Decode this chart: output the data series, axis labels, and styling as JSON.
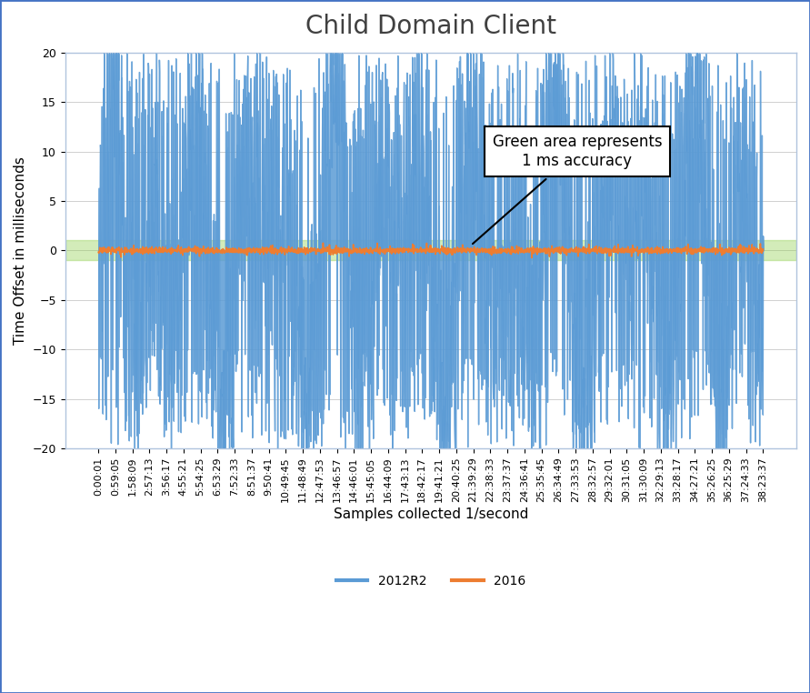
{
  "title": "Child Domain Client",
  "xlabel": "Samples collected 1/second",
  "ylabel": "Time Offset in milliseconds",
  "ylim": [
    -20,
    20
  ],
  "yticks": [
    -20,
    -15,
    -10,
    -5,
    0,
    5,
    10,
    15,
    20
  ],
  "green_band_lower": -1,
  "green_band_upper": 1,
  "green_color": "#92d050",
  "green_alpha": 0.4,
  "blue_color": "#5b9bd5",
  "orange_color": "#ed7d31",
  "background_color": "#ffffff",
  "border_color": "#4472c4",
  "annotation_text": "Green area represents\n1 ms accuracy",
  "legend_2012r2": "2012R2",
  "legend_2016": "2016",
  "xtick_labels": [
    "0:00:01",
    "0:59:05",
    "1:58:09",
    "2:57:13",
    "3:56:17",
    "4:55:21",
    "5:54:25",
    "6:53:29",
    "7:52:33",
    "8:51:37",
    "9:50:41",
    "10:49:45",
    "11:48:49",
    "12:47:53",
    "13:46:57",
    "14:46:01",
    "15:45:05",
    "16:44:09",
    "17:43:13",
    "18:42:17",
    "19:41:21",
    "20:40:25",
    "21:39:29",
    "22:38:33",
    "23:37:37",
    "24:36:41",
    "25:35:45",
    "26:34:49",
    "27:33:53",
    "28:32:57",
    "29:32:01",
    "30:31:05",
    "31:30:09",
    "32:29:13",
    "33:28:17",
    "34:27:21",
    "35:26:25",
    "36:25:29",
    "37:24:33",
    "38:23:37"
  ],
  "n_samples": 2400,
  "title_fontsize": 20,
  "axis_label_fontsize": 11,
  "tick_fontsize": 8,
  "legend_fontsize": 10
}
